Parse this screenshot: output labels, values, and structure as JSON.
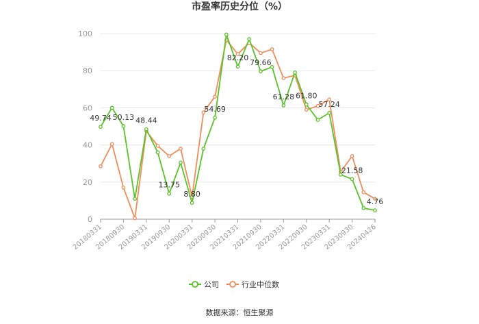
{
  "chart_data": {
    "type": "line",
    "title": "市盈率历史分位（%）",
    "ylim": [
      0,
      100
    ],
    "yticks": [
      0,
      20,
      40,
      60,
      80,
      100
    ],
    "grid": true,
    "legend_position": "bottom",
    "x": [
      "20180331",
      "20180630",
      "20180930",
      "20181231",
      "20190331",
      "20190630",
      "20190930",
      "20191231",
      "20200331",
      "20200630",
      "20200930",
      "20201231",
      "20210331",
      "20210630",
      "20210930",
      "20211231",
      "20220331",
      "20220630",
      "20220930",
      "20221231",
      "20230331",
      "20230630",
      "20230930",
      "20231231",
      "20240426"
    ],
    "x_tick_labels": [
      "20180331",
      "20180930",
      "20190331",
      "20190930",
      "20200331",
      "20200930",
      "20210331",
      "20210930",
      "20220331",
      "20220930",
      "20230331",
      "20230930",
      "20240426"
    ],
    "series": [
      {
        "name": "公司",
        "color": "#5ac228",
        "values": [
          49.74,
          60.0,
          50.13,
          11.0,
          48.44,
          36.0,
          13.75,
          30.5,
          8.8,
          38.0,
          54.69,
          99.5,
          82.2,
          97.0,
          79.66,
          82.0,
          61.28,
          79.0,
          61.8,
          53.5,
          57.24,
          24.0,
          21.58,
          6.0,
          4.76
        ]
      },
      {
        "name": "行业中位数",
        "color": "#f08c5a",
        "values": [
          28.5,
          40.5,
          17.0,
          0.5,
          47.5,
          39.5,
          34.0,
          38.0,
          12.0,
          57.5,
          66.0,
          96.5,
          89.0,
          95.0,
          89.5,
          91.5,
          76.0,
          77.5,
          59.0,
          61.0,
          64.5,
          25.5,
          34.0,
          14.5,
          11.0
        ]
      }
    ],
    "data_labels": [
      {
        "index": 0,
        "text": "49.74"
      },
      {
        "index": 2,
        "text": "50.13"
      },
      {
        "index": 4,
        "text": "48.44"
      },
      {
        "index": 6,
        "text": "13.75"
      },
      {
        "index": 8,
        "text": "8.80"
      },
      {
        "index": 10,
        "text": "54.69"
      },
      {
        "index": 12,
        "text": "82.20"
      },
      {
        "index": 14,
        "text": "79.66"
      },
      {
        "index": 16,
        "text": "61.28"
      },
      {
        "index": 18,
        "text": "61.80"
      },
      {
        "index": 20,
        "text": "57.24"
      },
      {
        "index": 22,
        "text": "21.58"
      },
      {
        "index": 24,
        "text": "4.76"
      }
    ]
  },
  "source_text": "数据来源：恒生聚源"
}
